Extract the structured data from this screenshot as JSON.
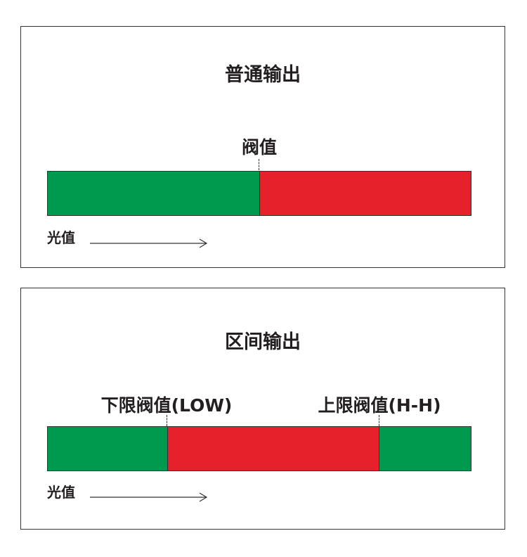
{
  "colors": {
    "pass": "#009a4e",
    "fail": "#e6212b"
  },
  "panels": [
    {
      "title": "普通输出",
      "thresholds": [
        {
          "label": "阀值",
          "position_fraction": 0.5
        }
      ],
      "segments": [
        {
          "color": "pass",
          "fraction": 0.5
        },
        {
          "color": "fail",
          "fraction": 0.5
        }
      ],
      "axis_label": "光值"
    },
    {
      "title": "区间输出",
      "thresholds": [
        {
          "label": "下限阀值(LOW)",
          "position_fraction": 0.282
        },
        {
          "label": "上限阀值(H-H)",
          "position_fraction": 0.782
        }
      ],
      "segments": [
        {
          "color": "pass",
          "fraction": 0.282
        },
        {
          "color": "fail",
          "fraction": 0.5
        },
        {
          "color": "pass",
          "fraction": 0.218
        }
      ],
      "axis_label": "光值"
    }
  ]
}
